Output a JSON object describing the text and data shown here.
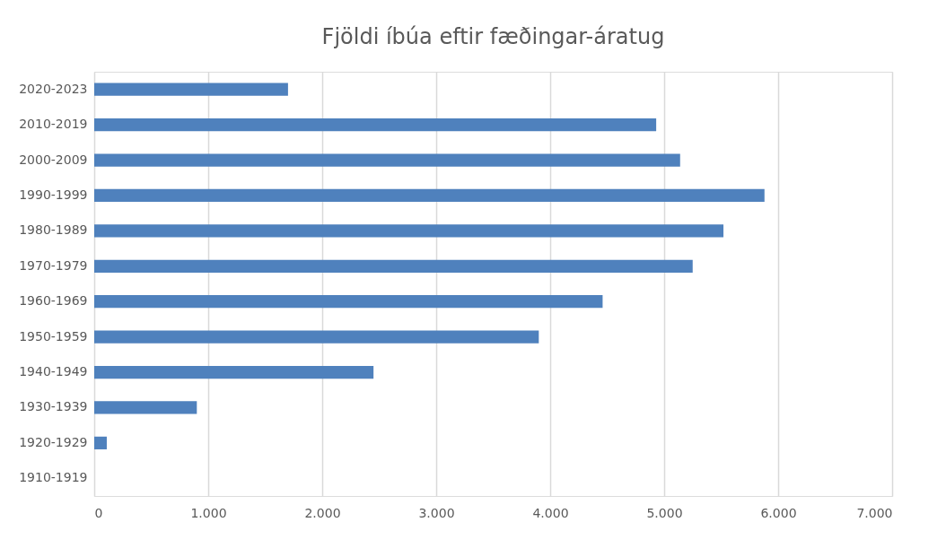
{
  "chart_data": {
    "type": "bar",
    "orientation": "horizontal",
    "title": "Fjöldi íbúa eftir fæðingar-áratug",
    "categories": [
      "2020-2023",
      "2010-2019",
      "2000-2009",
      "1990-1999",
      "1980-1989",
      "1970-1979",
      "1960-1969",
      "1950-1959",
      "1940-1949",
      "1930-1939",
      "1920-1929",
      "1910-1919"
    ],
    "values": [
      1700,
      4930,
      5140,
      5880,
      5520,
      5250,
      4460,
      3900,
      2450,
      900,
      110,
      0
    ],
    "color": "#4f81bd",
    "xlim": [
      0,
      7000
    ],
    "xticks": [
      {
        "value": 0,
        "label": "0"
      },
      {
        "value": 1000,
        "label": "1.000"
      },
      {
        "value": 2000,
        "label": "2.000"
      },
      {
        "value": 3000,
        "label": "3.000"
      },
      {
        "value": 4000,
        "label": "4.000"
      },
      {
        "value": 5000,
        "label": "5.000"
      },
      {
        "value": 6000,
        "label": "6.000"
      },
      {
        "value": 7000,
        "label": "7.000"
      }
    ],
    "grid": "x"
  }
}
